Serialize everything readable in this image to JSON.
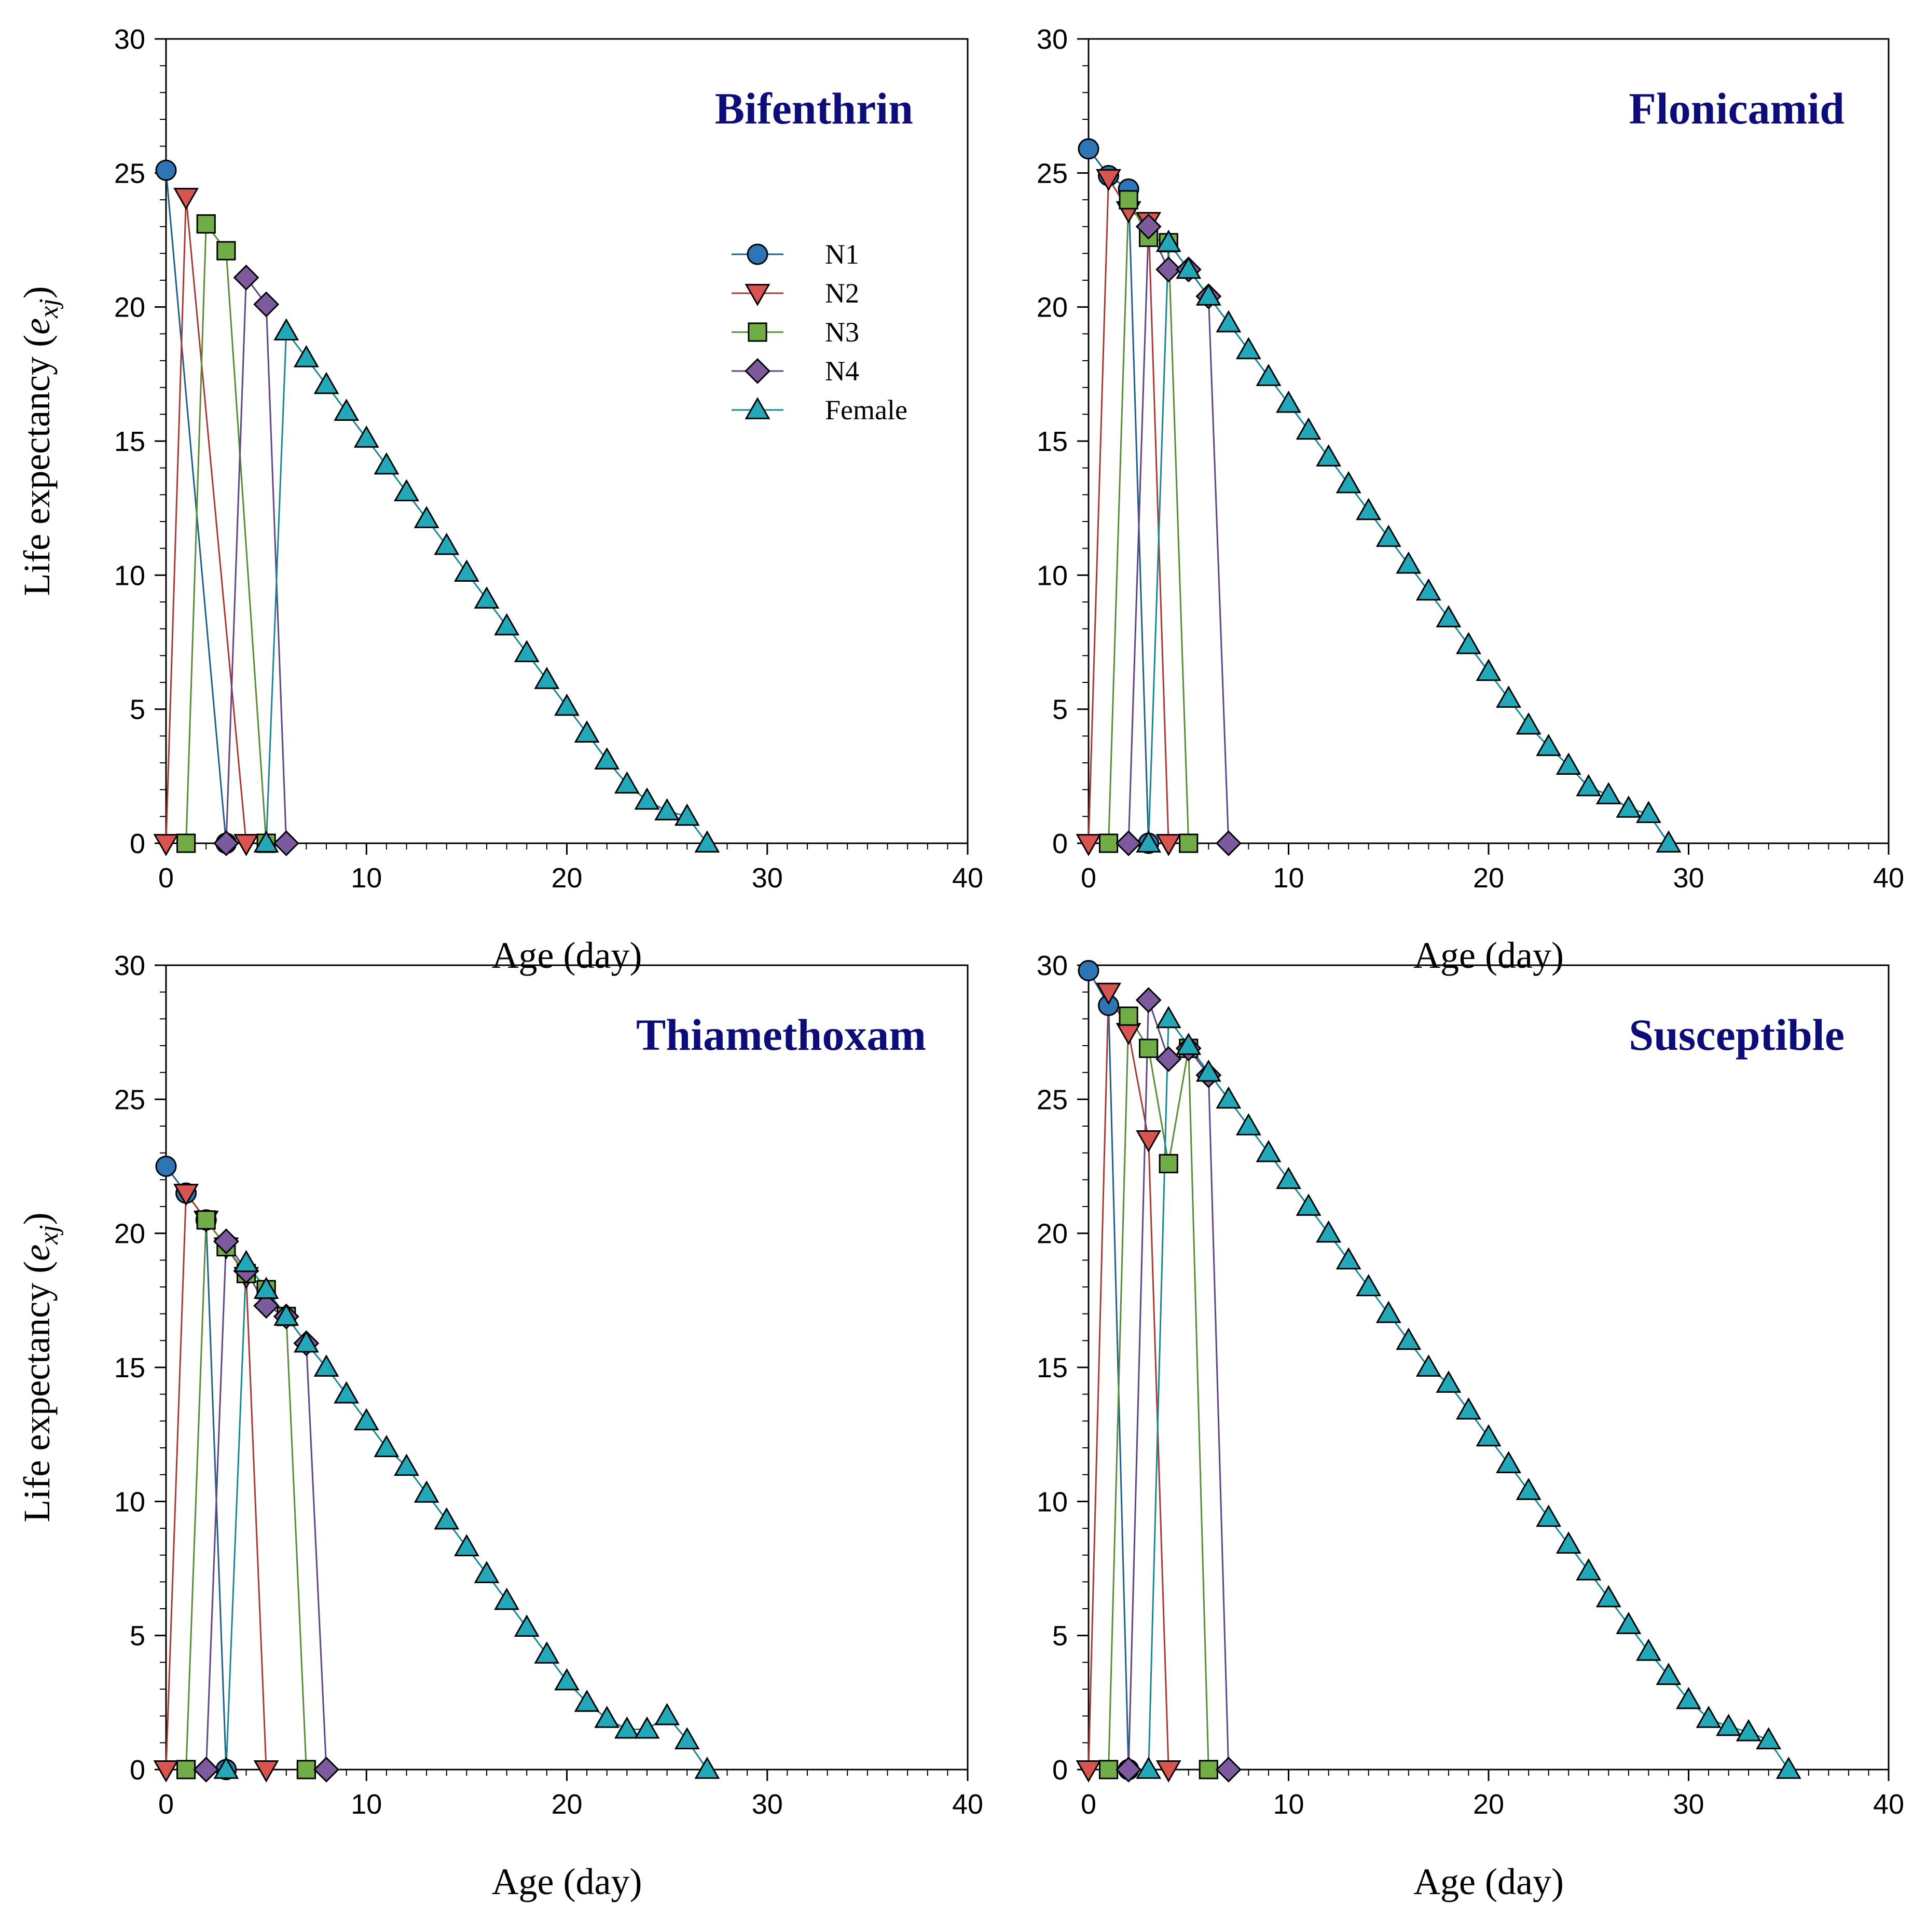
{
  "chart_data": [
    {
      "type": "line",
      "title": "Bifenthrin",
      "xlabel": "Age (day)",
      "ylabel": "Life expectancy (e_xj)",
      "xlim": [
        0,
        40
      ],
      "ylim": [
        0,
        30
      ],
      "xticks": [
        0,
        10,
        20,
        30,
        40
      ],
      "yticks": [
        0,
        5,
        10,
        15,
        20,
        25,
        30
      ],
      "show_legend": true,
      "series": [
        {
          "name": "N1",
          "x": [
            0,
            3
          ],
          "y": [
            25.1,
            0
          ]
        },
        {
          "name": "N2",
          "x": [
            0,
            1,
            4
          ],
          "y": [
            0,
            24.1,
            0
          ]
        },
        {
          "name": "N3",
          "x": [
            1,
            2,
            3,
            5
          ],
          "y": [
            0,
            23.1,
            22.1,
            0
          ]
        },
        {
          "name": "N4",
          "x": [
            3,
            4,
            5,
            6
          ],
          "y": [
            0,
            21.1,
            20.1,
            0
          ]
        },
        {
          "name": "Female",
          "x": [
            5,
            6,
            7,
            8,
            9,
            10,
            11,
            12,
            13,
            14,
            15,
            16,
            17,
            18,
            19,
            20,
            21,
            22,
            23,
            24,
            25,
            26,
            27
          ],
          "y": [
            0,
            19.1,
            18.1,
            17.1,
            16.1,
            15.1,
            14.1,
            13.1,
            12.1,
            11.1,
            10.1,
            9.1,
            8.1,
            7.1,
            6.1,
            5.1,
            4.1,
            3.1,
            2.2,
            1.6,
            1.2,
            1.0,
            0
          ]
        }
      ]
    },
    {
      "type": "line",
      "title": "Flonicamid",
      "xlabel": "Age (day)",
      "ylabel": "",
      "xlim": [
        0,
        40
      ],
      "ylim": [
        0,
        30
      ],
      "xticks": [
        0,
        10,
        20,
        30,
        40
      ],
      "yticks": [
        0,
        5,
        10,
        15,
        20,
        25,
        30
      ],
      "show_legend": false,
      "series": [
        {
          "name": "N1",
          "x": [
            0,
            1,
            2,
            3
          ],
          "y": [
            25.9,
            24.9,
            24.4,
            0
          ]
        },
        {
          "name": "N2",
          "x": [
            0,
            1,
            2,
            3,
            4
          ],
          "y": [
            0,
            24.8,
            23.6,
            23.2,
            0
          ]
        },
        {
          "name": "N3",
          "x": [
            1,
            2,
            3,
            4,
            5
          ],
          "y": [
            0,
            24.0,
            22.6,
            22.4,
            0
          ]
        },
        {
          "name": "N4",
          "x": [
            2,
            3,
            4,
            5,
            6,
            7
          ],
          "y": [
            0,
            23.0,
            21.4,
            21.4,
            20.4,
            0
          ]
        },
        {
          "name": "Female",
          "x": [
            3,
            4,
            5,
            6,
            7,
            8,
            9,
            10,
            11,
            12,
            13,
            14,
            15,
            16,
            17,
            18,
            19,
            20,
            21,
            22,
            23,
            24,
            25,
            26,
            27,
            28,
            29
          ],
          "y": [
            0,
            22.4,
            21.4,
            20.4,
            19.4,
            18.4,
            17.4,
            16.4,
            15.4,
            14.4,
            13.4,
            12.4,
            11.4,
            10.4,
            9.4,
            8.4,
            7.4,
            6.4,
            5.4,
            4.4,
            3.6,
            2.9,
            2.1,
            1.8,
            1.3,
            1.1,
            0
          ]
        }
      ]
    },
    {
      "type": "line",
      "title": "Thiamethoxam",
      "xlabel": "Age (day)",
      "ylabel": "Life expectancy (e_xj)",
      "xlim": [
        0,
        40
      ],
      "ylim": [
        0,
        30
      ],
      "xticks": [
        0,
        10,
        20,
        30,
        40
      ],
      "yticks": [
        0,
        5,
        10,
        15,
        20,
        25,
        30
      ],
      "show_legend": false,
      "series": [
        {
          "name": "N1",
          "x": [
            0,
            1,
            2,
            3
          ],
          "y": [
            22.5,
            21.5,
            20.5,
            0
          ]
        },
        {
          "name": "N2",
          "x": [
            0,
            1,
            2,
            3,
            4,
            5
          ],
          "y": [
            0,
            21.5,
            20.5,
            19.5,
            18.4,
            0
          ]
        },
        {
          "name": "N3",
          "x": [
            1,
            2,
            3,
            4,
            5,
            6,
            7
          ],
          "y": [
            0,
            20.5,
            19.5,
            18.5,
            17.9,
            16.9,
            0
          ]
        },
        {
          "name": "N4",
          "x": [
            2,
            3,
            4,
            5,
            6,
            7,
            8
          ],
          "y": [
            0,
            19.7,
            18.6,
            17.3,
            16.9,
            15.9,
            0
          ]
        },
        {
          "name": "Female",
          "x": [
            3,
            4,
            5,
            6,
            7,
            8,
            9,
            10,
            11,
            12,
            13,
            14,
            15,
            16,
            17,
            18,
            19,
            20,
            21,
            22,
            23,
            24,
            25,
            26,
            27
          ],
          "y": [
            0,
            18.9,
            17.9,
            16.9,
            15.9,
            15.0,
            14.0,
            13.0,
            12.0,
            11.3,
            10.3,
            9.3,
            8.3,
            7.3,
            6.3,
            5.3,
            4.3,
            3.3,
            2.5,
            1.9,
            1.5,
            1.5,
            2.0,
            1.1,
            0
          ]
        }
      ]
    },
    {
      "type": "line",
      "title": "Susceptible",
      "xlabel": "Age (day)",
      "ylabel": "",
      "xlim": [
        0,
        40
      ],
      "ylim": [
        0,
        30
      ],
      "xticks": [
        0,
        10,
        20,
        30,
        40
      ],
      "yticks": [
        0,
        5,
        10,
        15,
        20,
        25,
        30
      ],
      "show_legend": false,
      "series": [
        {
          "name": "N1",
          "x": [
            0,
            1,
            2
          ],
          "y": [
            29.8,
            28.5,
            0
          ]
        },
        {
          "name": "N2",
          "x": [
            0,
            1,
            2,
            3,
            4
          ],
          "y": [
            0,
            29.0,
            27.5,
            23.5,
            0
          ]
        },
        {
          "name": "N3",
          "x": [
            1,
            2,
            3,
            4,
            5,
            6
          ],
          "y": [
            0,
            28.1,
            26.9,
            22.6,
            26.9,
            0
          ]
        },
        {
          "name": "N4",
          "x": [
            2,
            3,
            4,
            5,
            6,
            7
          ],
          "y": [
            0,
            28.7,
            26.5,
            26.9,
            25.9,
            0
          ]
        },
        {
          "name": "Female",
          "x": [
            3,
            4,
            5,
            6,
            7,
            8,
            9,
            10,
            11,
            12,
            13,
            14,
            15,
            16,
            17,
            18,
            19,
            20,
            21,
            22,
            23,
            24,
            25,
            26,
            27,
            28,
            29,
            30,
            31,
            32,
            33,
            34,
            35
          ],
          "y": [
            0,
            28.0,
            27.0,
            26.0,
            25.0,
            24.0,
            23.0,
            22.0,
            21.0,
            20.0,
            19.0,
            18.0,
            17.0,
            16.0,
            15.0,
            14.4,
            13.4,
            12.4,
            11.4,
            10.4,
            9.4,
            8.4,
            7.4,
            6.4,
            5.4,
            4.4,
            3.5,
            2.6,
            1.9,
            1.6,
            1.4,
            1.1,
            0
          ]
        }
      ]
    }
  ],
  "legend": {
    "entries": [
      "N1",
      "N2",
      "N3",
      "N4",
      "Female"
    ]
  },
  "styles": {
    "N1": {
      "marker": "circle",
      "fill": "#2e75b6",
      "line": "#1f5f8b"
    },
    "N2": {
      "marker": "triangle-down",
      "fill": "#d9534f",
      "line": "#a63a36"
    },
    "N3": {
      "marker": "square",
      "fill": "#70ad47",
      "line": "#5a8c38"
    },
    "N4": {
      "marker": "diamond",
      "fill": "#7d5a9e",
      "line": "#604483"
    },
    "Female": {
      "marker": "triangle-up",
      "fill": "#22a8b8",
      "line": "#1a8794"
    }
  }
}
